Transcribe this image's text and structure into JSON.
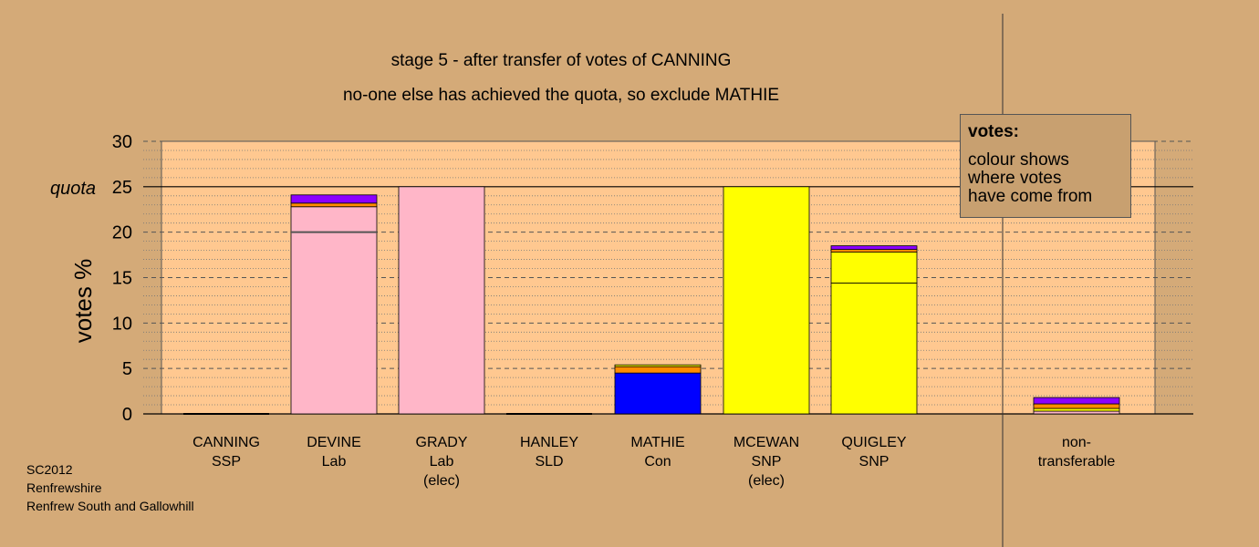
{
  "chart_data": {
    "type": "bar",
    "title": "stage 5 - after transfer of votes of CANNING",
    "subtitle": "no-one else has achieved the quota, so exclude MATHIE",
    "ylabel": "votes %",
    "ylim": [
      0,
      30
    ],
    "yticks": [
      "0",
      "5",
      "10",
      "15",
      "20",
      "25",
      "30"
    ],
    "quota": 25,
    "quota_label": "quota",
    "grid": true,
    "categories": [
      {
        "name": "CANNING",
        "party": "SSP",
        "note": ""
      },
      {
        "name": "DEVINE",
        "party": "Lab",
        "note": ""
      },
      {
        "name": "GRADY",
        "party": "Lab",
        "note": "(elec)"
      },
      {
        "name": "HANLEY",
        "party": "SLD",
        "note": ""
      },
      {
        "name": "MATHIE",
        "party": "Con",
        "note": ""
      },
      {
        "name": "MCEWAN",
        "party": "SNP",
        "note": "(elec)"
      },
      {
        "name": "QUIGLEY",
        "party": "SNP",
        "note": ""
      },
      {
        "name": "non-",
        "party": "transferable",
        "note": ""
      }
    ],
    "stacks": [
      [],
      [
        {
          "value": 20.0,
          "color": "#ffb6c8"
        },
        {
          "value": 2.8,
          "color": "#ffb6c8"
        },
        {
          "value": 0.4,
          "color": "#ff8c00"
        },
        {
          "value": 0.9,
          "color": "#8b00ff"
        }
      ],
      [
        {
          "value": 25.0,
          "color": "#ffb6c8"
        }
      ],
      [],
      [
        {
          "value": 4.5,
          "color": "#0000ff"
        },
        {
          "value": 0.7,
          "color": "#ff8c00"
        },
        {
          "value": 0.2,
          "color": "#ffff00"
        }
      ],
      [
        {
          "value": 25.0,
          "color": "#ffff00"
        }
      ],
      [
        {
          "value": 14.4,
          "color": "#ffff00"
        },
        {
          "value": 3.4,
          "color": "#ffff00"
        },
        {
          "value": 0.3,
          "color": "#ff8c00"
        },
        {
          "value": 0.4,
          "color": "#8b00ff"
        }
      ],
      [
        {
          "value": 0.3,
          "color": "#ffb6c8"
        },
        {
          "value": 0.3,
          "color": "#ffff00"
        },
        {
          "value": 0.5,
          "color": "#ff8c00"
        },
        {
          "value": 0.7,
          "color": "#8b00ff"
        }
      ]
    ]
  },
  "legend": {
    "title": "votes:",
    "lines": [
      "colour shows",
      "where votes",
      "have come from"
    ]
  },
  "footer": {
    "lines": [
      "SC2012",
      "Renfrewshire",
      "Renfrew South and Gallowhill"
    ]
  },
  "colors": {
    "background": "#d4aa78",
    "plot_background": "#ffc890",
    "grid": "#555555"
  }
}
